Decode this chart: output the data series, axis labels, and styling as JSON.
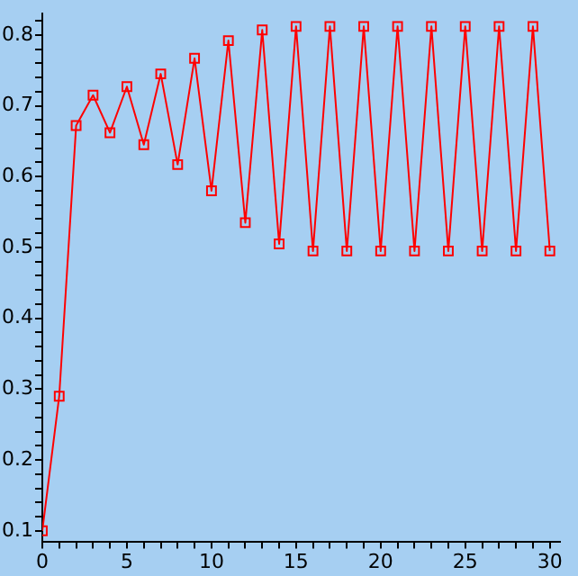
{
  "chart_data": {
    "type": "line",
    "x": [
      0,
      1,
      2,
      3,
      4,
      5,
      6,
      7,
      8,
      9,
      10,
      11,
      12,
      13,
      14,
      15,
      16,
      17,
      18,
      19,
      20,
      21,
      22,
      23,
      24,
      25,
      26,
      27,
      28,
      29,
      30
    ],
    "series": [
      {
        "color": "#ff0000",
        "values": [
          0.1,
          0.29,
          0.672,
          0.715,
          0.662,
          0.727,
          0.645,
          0.745,
          0.617,
          0.767,
          0.58,
          0.792,
          0.535,
          0.807,
          0.505,
          0.812,
          0.495,
          0.812,
          0.495,
          0.812,
          0.495,
          0.812,
          0.495,
          0.812,
          0.495,
          0.812,
          0.495,
          0.812,
          0.495,
          0.812,
          0.495
        ]
      }
    ],
    "xlim": [
      0,
      30.6
    ],
    "ylim": [
      0.085,
      0.83
    ],
    "xticks": [
      0,
      {
        "value": 1,
        "label": null
      },
      {
        "value": 2,
        "label": null
      },
      {
        "value": 3,
        "label": null
      },
      {
        "value": 4,
        "label": null
      },
      5,
      {
        "value": 6,
        "label": null
      },
      {
        "value": 7,
        "label": null
      },
      {
        "value": 8,
        "label": null
      },
      {
        "value": 9,
        "label": null
      },
      10,
      {
        "value": 11,
        "label": null
      },
      {
        "value": 12,
        "label": null
      },
      {
        "value": 13,
        "label": null
      },
      {
        "value": 14,
        "label": null
      },
      15,
      {
        "value": 16,
        "label": null
      },
      {
        "value": 17,
        "label": null
      },
      {
        "value": 18,
        "label": null
      },
      {
        "value": 19,
        "label": null
      },
      20,
      {
        "value": 21,
        "label": null
      },
      {
        "value": 22,
        "label": null
      },
      {
        "value": 23,
        "label": null
      },
      {
        "value": 24,
        "label": null
      },
      25,
      {
        "value": 26,
        "label": null
      },
      {
        "value": 27,
        "label": null
      },
      {
        "value": 28,
        "label": null
      },
      {
        "value": 29,
        "label": null
      },
      30
    ],
    "yticks": [
      0.1,
      {
        "value": 0.12,
        "label": null
      },
      {
        "value": 0.14,
        "label": null
      },
      {
        "value": 0.16,
        "label": null
      },
      {
        "value": 0.18,
        "label": null
      },
      0.2,
      {
        "value": 0.22,
        "label": null
      },
      {
        "value": 0.24,
        "label": null
      },
      {
        "value": 0.26,
        "label": null
      },
      {
        "value": 0.28,
        "label": null
      },
      0.3,
      {
        "value": 0.32,
        "label": null
      },
      {
        "value": 0.34,
        "label": null
      },
      {
        "value": 0.36,
        "label": null
      },
      {
        "value": 0.38,
        "label": null
      },
      0.4,
      {
        "value": 0.42,
        "label": null
      },
      {
        "value": 0.44,
        "label": null
      },
      {
        "value": 0.46,
        "label": null
      },
      {
        "value": 0.48,
        "label": null
      },
      0.5,
      {
        "value": 0.52,
        "label": null
      },
      {
        "value": 0.54,
        "label": null
      },
      {
        "value": 0.56,
        "label": null
      },
      {
        "value": 0.58,
        "label": null
      },
      0.6,
      {
        "value": 0.62,
        "label": null
      },
      {
        "value": 0.64,
        "label": null
      },
      {
        "value": 0.66,
        "label": null
      },
      {
        "value": 0.68,
        "label": null
      },
      0.7,
      {
        "value": 0.72,
        "label": null
      },
      {
        "value": 0.74,
        "label": null
      },
      {
        "value": 0.76,
        "label": null
      },
      {
        "value": 0.78,
        "label": null
      },
      0.8,
      {
        "value": 0.82,
        "label": null
      }
    ],
    "marker": "square",
    "line_style": "solid",
    "grid": false,
    "legend": false
  }
}
